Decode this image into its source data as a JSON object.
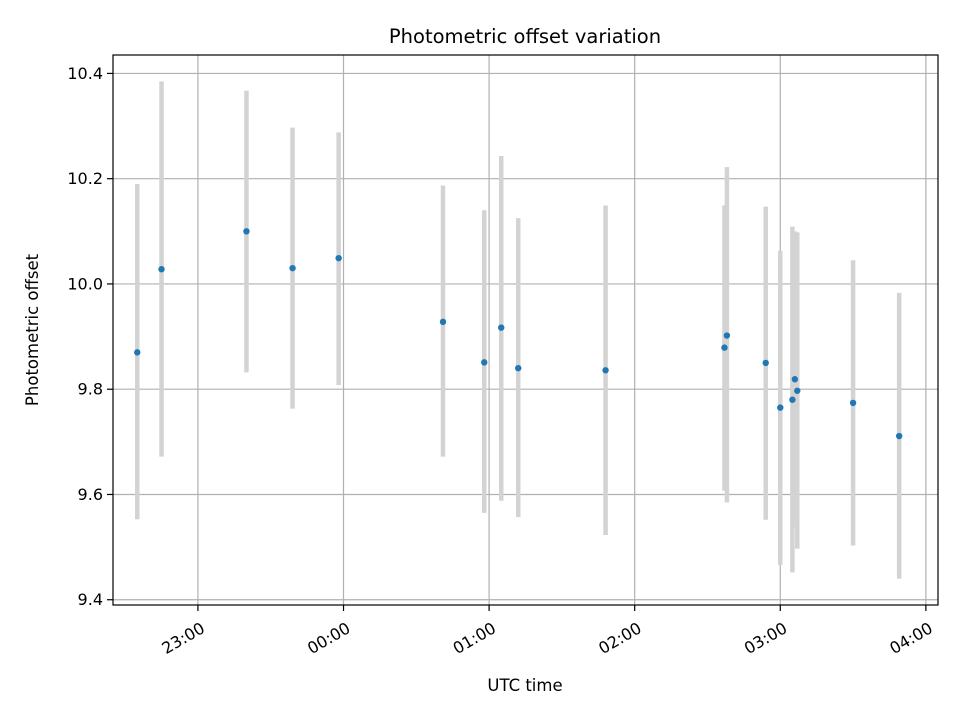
{
  "chart_data": {
    "type": "scatter",
    "title": "Photometric offset variation",
    "xlabel": "UTC time",
    "ylabel": "Photometric offset",
    "x_ticks": [
      "23:00",
      "00:00",
      "01:00",
      "02:00",
      "03:00",
      "04:00"
    ],
    "y_ticks": [
      "9.4",
      "9.6",
      "9.8",
      "10.0",
      "10.2",
      "10.4"
    ],
    "xlim": [
      "22:25",
      "04:05"
    ],
    "ylim": [
      9.39,
      10.435
    ],
    "grid": true,
    "colors": {
      "points": "#1f77b4",
      "errorbars": "#d3d3d3",
      "grid": "#b0b0b0"
    },
    "points": [
      {
        "t": "22:35",
        "y": 9.87,
        "lo": 9.553,
        "hi": 10.19
      },
      {
        "t": "22:45",
        "y": 10.028,
        "lo": 9.672,
        "hi": 10.385
      },
      {
        "t": "23:20",
        "y": 10.1,
        "lo": 9.832,
        "hi": 10.367
      },
      {
        "t": "23:39",
        "y": 10.03,
        "lo": 9.763,
        "hi": 10.297
      },
      {
        "t": "23:58",
        "y": 10.049,
        "lo": 9.808,
        "hi": 10.288
      },
      {
        "t": "00:41",
        "y": 9.928,
        "lo": 9.672,
        "hi": 10.187
      },
      {
        "t": "00:58",
        "y": 9.851,
        "lo": 9.565,
        "hi": 10.14
      },
      {
        "t": "01:05",
        "y": 9.917,
        "lo": 9.588,
        "hi": 10.243
      },
      {
        "t": "01:12",
        "y": 9.84,
        "lo": 9.557,
        "hi": 10.125
      },
      {
        "t": "01:48",
        "y": 9.836,
        "lo": 9.523,
        "hi": 10.149
      },
      {
        "t": "02:37",
        "y": 9.879,
        "lo": 9.607,
        "hi": 10.149
      },
      {
        "t": "02:38",
        "y": 9.902,
        "lo": 9.585,
        "hi": 10.222
      },
      {
        "t": "02:54",
        "y": 9.85,
        "lo": 9.552,
        "hi": 10.147
      },
      {
        "t": "03:00",
        "y": 9.765,
        "lo": 9.466,
        "hi": 10.063
      },
      {
        "t": "03:05",
        "y": 9.78,
        "lo": 9.452,
        "hi": 10.109
      },
      {
        "t": "03:06",
        "y": 9.819,
        "lo": 9.538,
        "hi": 10.1
      },
      {
        "t": "03:07",
        "y": 9.797,
        "lo": 9.497,
        "hi": 10.098
      },
      {
        "t": "03:30",
        "y": 9.774,
        "lo": 9.503,
        "hi": 10.045
      },
      {
        "t": "03:49",
        "y": 9.711,
        "lo": 9.44,
        "hi": 9.983
      }
    ]
  }
}
